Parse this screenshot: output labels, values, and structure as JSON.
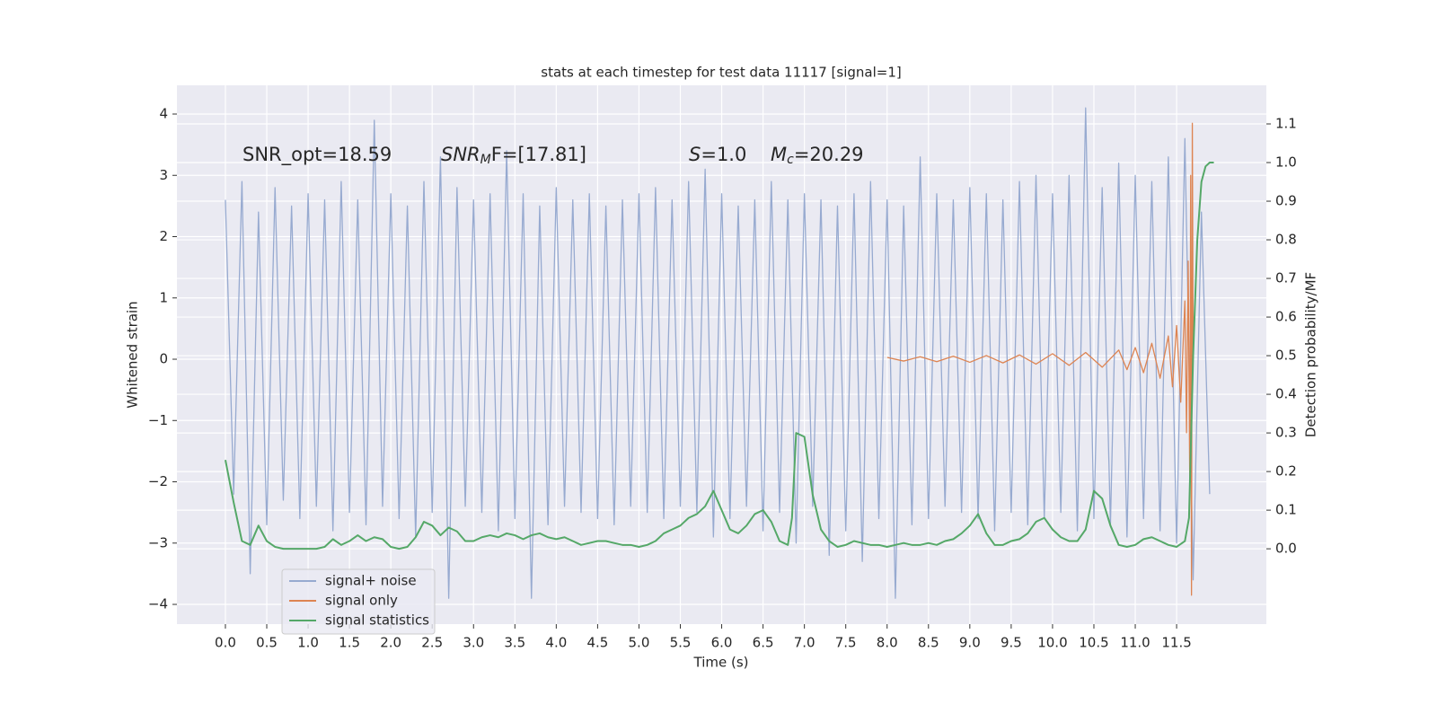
{
  "chart_data": {
    "type": "line",
    "title": "stats at each timestep for test data 11117 [signal=1]",
    "x_label": "Time (s)",
    "y_label": "Whitened strain",
    "y2_label": "Detection probability/MF",
    "annotations": [
      {
        "text": "SNR_opt=18.59"
      },
      {
        "base": "SNR",
        "sub": "M",
        "rest": "F=[17.81]"
      },
      {
        "base": "S",
        "rest": "=1.0"
      },
      {
        "base": "M",
        "sub": "c",
        "rest": "=20.29"
      }
    ],
    "xlim": [
      -0.586,
      12.585
    ],
    "ylim": [
      -4.322,
      4.469
    ],
    "y2lim": [
      -0.195,
      1.2
    ],
    "xticks": [
      {
        "value": 0,
        "label": "0.0"
      },
      0.5,
      {
        "value": 1,
        "label": "1.0"
      },
      1.5,
      {
        "value": 2,
        "label": "2.0"
      },
      2.5,
      {
        "value": 3,
        "label": "3.0"
      },
      3.5,
      {
        "value": 4,
        "label": "4.0"
      },
      4.5,
      {
        "value": 5,
        "label": "5.0"
      },
      5.5,
      {
        "value": 6,
        "label": "6.0"
      },
      6.5,
      {
        "value": 7,
        "label": "7.0"
      },
      7.5,
      {
        "value": 8,
        "label": "8.0"
      },
      8.5,
      {
        "value": 9,
        "label": "9.0"
      },
      9.5,
      {
        "value": 10,
        "label": "10.0"
      },
      10.5,
      {
        "value": 11,
        "label": "11.0"
      },
      11.5
    ],
    "yticks": [
      {
        "value": -4,
        "label": "−4"
      },
      {
        "value": -3,
        "label": "−3"
      },
      {
        "value": -2,
        "label": "−2"
      },
      {
        "value": -1,
        "label": "−1"
      },
      0,
      1,
      2,
      3,
      4
    ],
    "y2ticks": [
      {
        "value": 0,
        "label": "0.0"
      },
      0.1,
      0.2,
      0.3,
      0.4,
      0.5,
      0.6,
      0.7,
      0.8,
      0.9,
      {
        "value": 1,
        "label": "1.0"
      },
      1.1
    ],
    "grid": true,
    "legend": "lower left",
    "series": [
      {
        "name": "signal+ noise",
        "color": "#97aad0",
        "x": [
          0,
          0.1,
          0.2,
          0.3,
          0.4,
          0.5,
          0.6,
          0.7,
          0.8,
          0.9,
          1,
          1.1,
          1.2,
          1.3,
          1.4,
          1.5,
          1.6,
          1.7,
          1.8,
          1.9,
          2,
          2.1,
          2.2,
          2.3,
          2.4,
          2.5,
          2.6,
          2.7,
          2.8,
          2.9,
          3,
          3.1,
          3.2,
          3.3,
          3.4,
          3.5,
          3.6,
          3.7,
          3.8,
          3.9,
          4,
          4.1,
          4.2,
          4.3,
          4.4,
          4.5,
          4.6,
          4.7,
          4.8,
          4.9,
          5,
          5.1,
          5.2,
          5.3,
          5.4,
          5.5,
          5.6,
          5.7,
          5.8,
          5.9,
          6,
          6.1,
          6.2,
          6.3,
          6.4,
          6.5,
          6.6,
          6.7,
          6.8,
          6.9,
          7,
          7.1,
          7.2,
          7.3,
          7.4,
          7.5,
          7.6,
          7.7,
          7.8,
          7.9,
          8,
          8.1,
          8.2,
          8.3,
          8.4,
          8.5,
          8.6,
          8.7,
          8.8,
          8.9,
          9,
          9.1,
          9.2,
          9.3,
          9.4,
          9.5,
          9.6,
          9.7,
          9.8,
          9.9,
          10,
          10.1,
          10.2,
          10.3,
          10.4,
          10.5,
          10.6,
          10.7,
          10.8,
          10.9,
          11,
          11.1,
          11.2,
          11.3,
          11.4,
          11.5,
          11.6,
          11.7,
          11.8,
          11.9
        ],
        "values": [
          2.6,
          -2.2,
          2.9,
          -3.5,
          2.4,
          -2.7,
          2.8,
          -2.3,
          2.5,
          -2.6,
          2.7,
          -2.4,
          2.6,
          -2.8,
          2.9,
          -2.5,
          2.6,
          -2.7,
          3.9,
          -2.4,
          2.7,
          -2.6,
          2.5,
          -2.9,
          2.9,
          -2.5,
          3.3,
          -3.9,
          2.8,
          -2.4,
          2.6,
          -2.5,
          2.7,
          -2.8,
          3.4,
          -2.6,
          2.7,
          -3.9,
          2.5,
          -2.7,
          2.8,
          -2.4,
          2.6,
          -2.5,
          2.7,
          -2.6,
          2.5,
          -2.7,
          2.6,
          -2.4,
          2.7,
          -2.5,
          2.8,
          -2.6,
          2.6,
          -2.4,
          2.9,
          -2.5,
          3.1,
          -2.9,
          2.7,
          -2.6,
          2.5,
          -2.4,
          2.6,
          -2.8,
          2.9,
          -2.5,
          2.6,
          -3.0,
          2.7,
          -2.4,
          2.6,
          -3.2,
          2.5,
          -2.8,
          2.7,
          -3.3,
          2.9,
          -2.6,
          2.6,
          -3.9,
          2.5,
          -2.7,
          3.3,
          -2.6,
          2.7,
          -2.4,
          2.6,
          -2.5,
          2.8,
          -2.6,
          2.7,
          -2.8,
          2.6,
          -2.5,
          2.9,
          -2.7,
          3.0,
          -2.6,
          2.7,
          -2.5,
          3.0,
          -2.8,
          4.1,
          -2.6,
          2.8,
          -2.7,
          3.2,
          -2.9,
          3.0,
          -2.6,
          2.9,
          -2.8,
          3.3,
          -3.0,
          3.6,
          -3.6,
          2.4,
          -2.2
        ]
      },
      {
        "name": "signal only",
        "color": "#dd8452",
        "x": [
          8,
          8.2,
          8.4,
          8.6,
          8.8,
          9,
          9.2,
          9.4,
          9.6,
          9.8,
          10,
          10.2,
          10.4,
          10.6,
          10.8,
          10.9,
          11,
          11.1,
          11.2,
          11.3,
          11.4,
          11.45,
          11.5,
          11.55,
          11.6,
          11.62,
          11.64,
          11.66,
          11.67,
          11.68,
          11.69,
          11.7
        ],
        "values": [
          0.03,
          -0.03,
          0.04,
          -0.04,
          0.05,
          -0.05,
          0.06,
          -0.06,
          0.07,
          -0.08,
          0.09,
          -0.1,
          0.11,
          -0.13,
          0.15,
          -0.17,
          0.19,
          -0.22,
          0.26,
          -0.31,
          0.38,
          -0.45,
          0.55,
          -0.7,
          0.95,
          -1.2,
          1.6,
          -2.2,
          3.0,
          -3.85,
          3.85,
          0
        ]
      },
      {
        "name": "signal statistics",
        "color": "#55a868",
        "axis": "y2",
        "x": [
          0,
          0.1,
          0.2,
          0.3,
          0.4,
          0.5,
          0.6,
          0.7,
          0.8,
          0.9,
          1,
          1.1,
          1.2,
          1.3,
          1.4,
          1.5,
          1.6,
          1.7,
          1.8,
          1.9,
          2,
          2.1,
          2.2,
          2.3,
          2.4,
          2.5,
          2.6,
          2.7,
          2.8,
          2.9,
          3,
          3.1,
          3.2,
          3.3,
          3.4,
          3.5,
          3.6,
          3.7,
          3.8,
          3.9,
          4,
          4.1,
          4.2,
          4.3,
          4.4,
          4.5,
          4.6,
          4.7,
          4.8,
          4.9,
          5,
          5.1,
          5.2,
          5.3,
          5.4,
          5.5,
          5.6,
          5.7,
          5.8,
          5.9,
          6,
          6.1,
          6.2,
          6.3,
          6.4,
          6.5,
          6.6,
          6.7,
          6.8,
          6.85,
          6.9,
          7,
          7.1,
          7.2,
          7.3,
          7.4,
          7.5,
          7.6,
          7.7,
          7.8,
          7.9,
          8,
          8.1,
          8.2,
          8.3,
          8.4,
          8.5,
          8.6,
          8.7,
          8.8,
          8.9,
          9,
          9.1,
          9.2,
          9.3,
          9.4,
          9.5,
          9.6,
          9.7,
          9.8,
          9.9,
          10,
          10.1,
          10.2,
          10.3,
          10.4,
          10.5,
          10.6,
          10.7,
          10.8,
          10.9,
          11,
          11.1,
          11.2,
          11.3,
          11.4,
          11.5,
          11.6,
          11.65,
          11.7,
          11.75,
          11.8,
          11.85,
          11.9,
          11.95
        ],
        "values": [
          0.23,
          0.12,
          0.02,
          0.01,
          0.06,
          0.02,
          0.005,
          0,
          0,
          0,
          0,
          0,
          0.005,
          0.025,
          0.01,
          0.02,
          0.035,
          0.02,
          0.03,
          0.025,
          0.005,
          0,
          0.005,
          0.03,
          0.07,
          0.06,
          0.035,
          0.055,
          0.045,
          0.02,
          0.02,
          0.03,
          0.035,
          0.03,
          0.04,
          0.035,
          0.025,
          0.035,
          0.04,
          0.03,
          0.025,
          0.03,
          0.02,
          0.01,
          0.015,
          0.02,
          0.02,
          0.015,
          0.01,
          0.01,
          0.005,
          0.01,
          0.02,
          0.04,
          0.05,
          0.06,
          0.08,
          0.09,
          0.11,
          0.15,
          0.1,
          0.05,
          0.04,
          0.06,
          0.09,
          0.1,
          0.07,
          0.02,
          0.01,
          0.08,
          0.3,
          0.29,
          0.14,
          0.05,
          0.02,
          0.005,
          0.01,
          0.02,
          0.015,
          0.01,
          0.01,
          0.005,
          0.01,
          0.015,
          0.01,
          0.01,
          0.015,
          0.01,
          0.02,
          0.025,
          0.04,
          0.06,
          0.09,
          0.04,
          0.01,
          0.01,
          0.02,
          0.025,
          0.04,
          0.07,
          0.08,
          0.05,
          0.03,
          0.02,
          0.02,
          0.05,
          0.15,
          0.13,
          0.06,
          0.01,
          0.005,
          0.01,
          0.025,
          0.03,
          0.02,
          0.01,
          0.005,
          0.02,
          0.08,
          0.5,
          0.8,
          0.95,
          0.99,
          1.0,
          1.0
        ]
      }
    ]
  }
}
